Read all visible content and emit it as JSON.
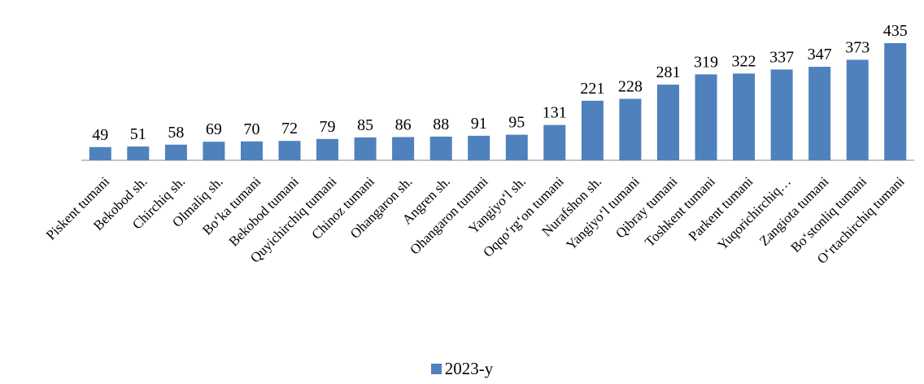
{
  "chart_data": {
    "type": "bar",
    "categories": [
      "Piskent tumani",
      "Bekobod sh.",
      "Chirchiq sh.",
      "Olmaliq sh.",
      "Bo‘ka tumani",
      "Bekobod tumani",
      "Quyichirchiq tumani",
      "Chinoz tumani",
      "Ohangaron sh.",
      "Angren sh.",
      "Ohangaron tumani",
      "Yangiyo‘l sh.",
      "Oqqo‘rg‘on tumani",
      "Nurafshon sh.",
      "Yangiyo‘l tumani",
      "Qibray tumani",
      "Toshkent tumani",
      "Parkent tumani",
      "Yuqorichirchiq…",
      "Zangiota tumani",
      "Bo‘stonliq tumani",
      "O‘rtachirchiq tumani"
    ],
    "series": [
      {
        "name": "2023-y",
        "values": [
          49,
          51,
          58,
          69,
          70,
          72,
          79,
          85,
          86,
          88,
          91,
          95,
          131,
          221,
          228,
          281,
          319,
          322,
          337,
          347,
          373,
          435
        ],
        "color": "#4F81BD"
      }
    ],
    "ylim": [
      0,
      435
    ],
    "grid": false,
    "legend_position": "bottom",
    "show_data_labels": true
  }
}
